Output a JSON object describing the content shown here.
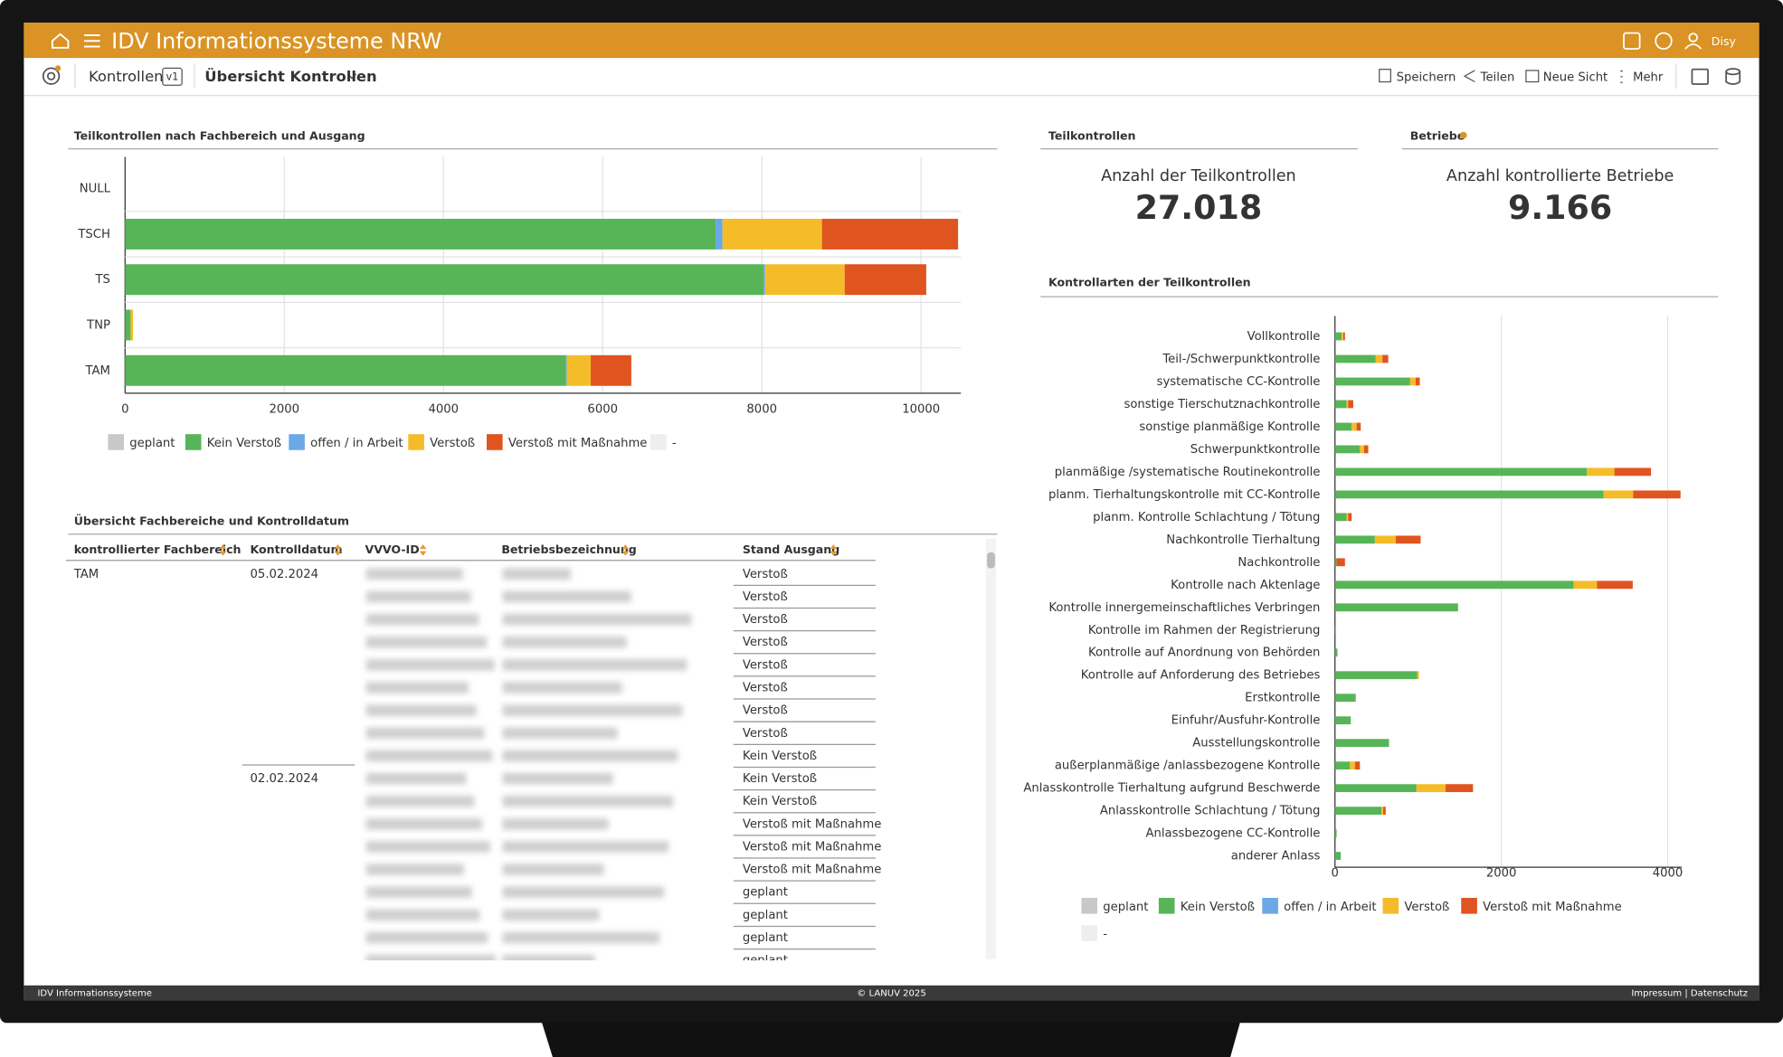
{
  "header": {
    "title": "IDV Informationssysteme NRW",
    "user": "Disy"
  },
  "toolbar": {
    "section": "Kontrollen",
    "version": "v1",
    "view": "Übersicht Kontrollen",
    "actions": [
      "Speichern",
      "Teilen",
      "Neue Sicht",
      "Mehr"
    ]
  },
  "chart_data": [
    {
      "type": "bar",
      "orientation": "horizontal",
      "stacked": true,
      "grid": true,
      "title": "Teilkontrollen nach Fachbereich und Ausgang",
      "categories": [
        "NULL",
        "TSCH",
        "TS",
        "TNP",
        "TAM"
      ],
      "series": [
        {
          "name": "geplant",
          "color": "#c8c8c8",
          "values": [
            0,
            0,
            0,
            0,
            0
          ]
        },
        {
          "name": "Kein Verstoß",
          "color": "#57b557",
          "values": [
            0,
            7420,
            8020,
            70,
            5540
          ]
        },
        {
          "name": "offen / in Arbeit",
          "color": "#6aa8e8",
          "values": [
            0,
            85,
            20,
            0,
            10
          ]
        },
        {
          "name": "Verstoß",
          "color": "#f5bc2a",
          "values": [
            0,
            1250,
            1000,
            30,
            300
          ]
        },
        {
          "name": "Verstoß mit Maßnahme",
          "color": "#e0541f",
          "values": [
            0,
            1710,
            1025,
            0,
            510
          ]
        },
        {
          "name": "-",
          "color": "#eeeeee",
          "values": [
            0,
            0,
            0,
            0,
            0
          ]
        }
      ],
      "xlim": [
        0,
        10500
      ],
      "xticks": [
        0,
        2000,
        4000,
        6000,
        8000,
        10000
      ]
    },
    {
      "type": "bar",
      "orientation": "horizontal",
      "stacked": true,
      "grid": true,
      "title": "Kontrollarten der Teilkontrollen",
      "categories": [
        "Vollkontrolle",
        "Teil-/Schwerpunktkontrolle",
        "systematische CC-Kontrolle",
        "sonstige Tierschutznachkontrolle",
        "sonstige planmäßige Kontrolle",
        "Schwerpunktkontrolle",
        "planmäßige /systematische Routinekontrolle",
        "planm. Tierhaltungskontrolle mit CC-Kontrolle",
        "planm. Kontrolle Schlachtung / Tötung",
        "Nachkontrolle Tierhaltung",
        "Nachkontrolle",
        "Kontrolle nach Aktenlage",
        "Kontrolle innergemeinschaftliches Verbringen",
        "Kontrolle im Rahmen der Registrierung",
        "Kontrolle auf Anordnung von Behörden",
        "Kontrolle auf Anforderung des Betriebes",
        "Erstkontrolle",
        "Einfuhr/Ausfuhr-Kontrolle",
        "Ausstellungskontrolle",
        "außerplanmäßige /anlassbezogene  Kontrolle",
        "Anlasskontrolle Tierhaltung aufgrund Beschwerde",
        "Anlasskontrolle Schlachtung / Tötung",
        "Anlassbezogene CC-Kontrolle",
        "anderer Anlass"
      ],
      "series": [
        {
          "name": "geplant",
          "color": "#c8c8c8",
          "values": [
            0,
            0,
            0,
            0,
            0,
            0,
            0,
            0,
            0,
            0,
            0,
            0,
            0,
            0,
            0,
            0,
            0,
            0,
            0,
            0,
            0,
            0,
            0,
            0
          ]
        },
        {
          "name": "Kein Verstoß",
          "color": "#57b557",
          "values": [
            80,
            490,
            900,
            140,
            200,
            300,
            3030,
            3230,
            140,
            480,
            20,
            2870,
            1480,
            10,
            30,
            990,
            250,
            190,
            650,
            180,
            980,
            560,
            20,
            70
          ]
        },
        {
          "name": "offen / in Arbeit",
          "color": "#6aa8e8",
          "values": [
            0,
            0,
            0,
            0,
            0,
            0,
            0,
            0,
            0,
            0,
            0,
            0,
            0,
            0,
            0,
            0,
            0,
            0,
            0,
            0,
            0,
            0,
            0,
            0
          ]
        },
        {
          "name": "Verstoß",
          "color": "#f5bc2a",
          "values": [
            20,
            80,
            70,
            20,
            60,
            50,
            330,
            355,
            20,
            250,
            0,
            280,
            0,
            0,
            0,
            20,
            0,
            0,
            0,
            60,
            350,
            20,
            0,
            0
          ]
        },
        {
          "name": "Verstoß mit Maßnahme",
          "color": "#e0541f",
          "values": [
            20,
            70,
            50,
            60,
            50,
            50,
            440,
            570,
            40,
            300,
            100,
            430,
            0,
            0,
            0,
            0,
            0,
            0,
            0,
            60,
            330,
            30,
            0,
            0
          ]
        },
        {
          "name": "-",
          "color": "#eeeeee",
          "values": [
            0,
            0,
            0,
            0,
            0,
            0,
            0,
            0,
            0,
            0,
            0,
            0,
            0,
            0,
            0,
            0,
            0,
            0,
            0,
            0,
            0,
            0,
            0,
            0
          ]
        }
      ],
      "xlim": [
        0,
        4170
      ],
      "xticks": [
        0,
        2000,
        4000
      ]
    }
  ],
  "kpis": [
    {
      "title": "Teilkontrollen",
      "label": "Anzahl der Teilkontrollen",
      "value": "27.018"
    },
    {
      "title": "Betriebe",
      "label": "Anzahl kontrollierte Betriebe",
      "value": "9.166"
    }
  ],
  "table": {
    "title": "Übersicht Fachbereiche und Kontrolldatum",
    "columns": [
      "kontrollierter Fachbereich",
      "Kontrolldatum",
      "VVVO-ID",
      "Betriebsbezeichnung",
      "Stand Ausgang"
    ],
    "fachbereich": "TAM",
    "dates": [
      "05.02.2024",
      "02.02.2024"
    ],
    "stand": [
      "Verstoß",
      "Verstoß",
      "Verstoß",
      "Verstoß",
      "Verstoß",
      "Verstoß",
      "Verstoß",
      "Verstoß",
      "Kein Verstoß",
      "Kein Verstoß",
      "Kein Verstoß",
      "Verstoß mit Maßnahme",
      "Verstoß mit Maßnahme",
      "Verstoß mit Maßnahme",
      "geplant",
      "geplant",
      "geplant",
      "geplant"
    ]
  },
  "footer": {
    "left": "IDV Informationssysteme",
    "center": "© LANUV 2025",
    "right": "Impressum | Datenschutz"
  }
}
